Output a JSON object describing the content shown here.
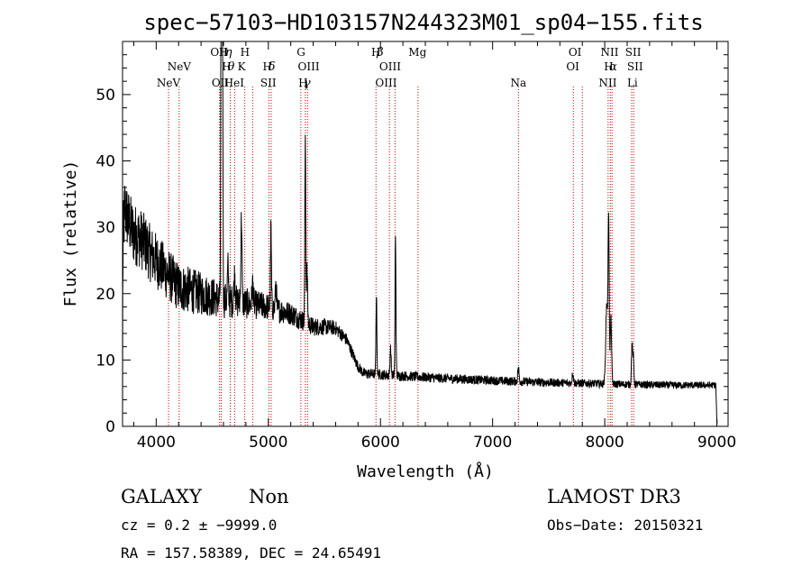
{
  "chart_data": {
    "type": "line",
    "title": "spec−57103−HD103157N244323M01_sp04−155.fits",
    "xlabel": "Wavelength (Å)",
    "ylabel": "Flux (relative)",
    "xlim": [
      3700,
      9100
    ],
    "ylim": [
      0,
      58
    ],
    "x_ticks": [
      {
        "value": 4000,
        "label": "4000"
      },
      {
        "value": 5000,
        "label": "5000"
      },
      {
        "value": 6000,
        "label": "6000"
      },
      {
        "value": 7000,
        "label": "7000"
      },
      {
        "value": 8000,
        "label": "8000"
      },
      {
        "value": 9000,
        "label": "9000"
      }
    ],
    "y_ticks": [
      {
        "value": 0,
        "label": "0"
      },
      {
        "value": 10,
        "label": "10"
      },
      {
        "value": 20,
        "label": "20"
      },
      {
        "value": 30,
        "label": "30"
      },
      {
        "value": 40,
        "label": "40"
      },
      {
        "value": 50,
        "label": "50"
      }
    ],
    "grid": false,
    "continuum_nodes": [
      [
        3700,
        13
      ],
      [
        3705,
        28
      ],
      [
        3720,
        33
      ],
      [
        3750,
        31
      ],
      [
        3800,
        29
      ],
      [
        3850,
        28.5
      ],
      [
        3900,
        27.5
      ],
      [
        3950,
        26
      ],
      [
        4000,
        25
      ],
      [
        4050,
        24
      ],
      [
        4100,
        23
      ],
      [
        4150,
        22
      ],
      [
        4200,
        21
      ],
      [
        4300,
        20.5
      ],
      [
        4400,
        20
      ],
      [
        4500,
        19.5
      ],
      [
        4600,
        19
      ],
      [
        4700,
        18.8
      ],
      [
        4800,
        18.5
      ],
      [
        4900,
        18.3
      ],
      [
        5000,
        18
      ],
      [
        5100,
        17.5
      ],
      [
        5200,
        17
      ],
      [
        5300,
        16
      ],
      [
        5400,
        15
      ],
      [
        5500,
        15
      ],
      [
        5600,
        14.8
      ],
      [
        5700,
        13
      ],
      [
        5750,
        11
      ],
      [
        5800,
        9
      ],
      [
        5850,
        8
      ],
      [
        6000,
        7.8
      ],
      [
        6200,
        7.6
      ],
      [
        6500,
        7.3
      ],
      [
        7000,
        6.9
      ],
      [
        7500,
        6.6
      ],
      [
        7800,
        6.5
      ],
      [
        8000,
        6.4
      ],
      [
        8300,
        6.3
      ],
      [
        8600,
        6.2
      ],
      [
        8990,
        6.2
      ],
      [
        9000,
        0.5
      ]
    ],
    "emission_features": [
      [
        4580,
        60,
        4.0
      ],
      [
        4590,
        55,
        4.0
      ],
      [
        4640,
        5,
        5.0
      ],
      [
        4700,
        4,
        6.0
      ],
      [
        4760,
        13,
        5.0
      ],
      [
        4860,
        3,
        6.0
      ],
      [
        5023,
        12,
        4.0
      ],
      [
        5068,
        4,
        5.0
      ],
      [
        5330,
        28,
        4.0
      ],
      [
        5345,
        8,
        5.0
      ],
      [
        5964,
        12,
        4.0
      ],
      [
        6090,
        4,
        5.0
      ],
      [
        6134,
        21,
        4.0
      ],
      [
        7230,
        2,
        6.0
      ],
      [
        7715,
        1.5,
        6.0
      ],
      [
        8018,
        12,
        9.0
      ],
      [
        8035,
        24,
        5.0
      ],
      [
        8055,
        10,
        6.0
      ],
      [
        8243,
        6,
        5.0
      ],
      [
        8255,
        4,
        5.0
      ]
    ],
    "noise_amplitude_bands": [
      [
        3700,
        5.0
      ],
      [
        4300,
        3.5
      ],
      [
        4700,
        2.5
      ],
      [
        5800,
        0.8
      ],
      [
        9000,
        0.5
      ]
    ],
    "line_markers": [
      {
        "wavelength": 4110,
        "label": "NeV",
        "row": 3
      },
      {
        "wavelength": 4205,
        "label": "NeV",
        "row": 2
      },
      {
        "wavelength": 4560,
        "label": "OII",
        "row": 1
      },
      {
        "wavelength": 4572,
        "label": "OII",
        "row": 3
      },
      {
        "wavelength": 4600,
        "label": "H",
        "row": 1
      },
      {
        "wavelength": 4645,
        "label": "η",
        "row": 1,
        "greek": true
      },
      {
        "wavelength": 4628,
        "label": "H",
        "row": 2
      },
      {
        "wavelength": 4668,
        "label": "θ",
        "row": 2,
        "greek": true
      },
      {
        "wavelength": 4695,
        "label": "HeI",
        "row": 3
      },
      {
        "wavelength": 4762,
        "label": "K",
        "row": 2
      },
      {
        "wavelength": 4792,
        "label": "H",
        "row": 1
      },
      {
        "wavelength": 4992,
        "label": "H",
        "row": 2
      },
      {
        "wavelength": 5030,
        "label": "δ",
        "row": 2,
        "greek": true
      },
      {
        "wavelength": 5000,
        "label": "SII",
        "row": 3
      },
      {
        "wavelength": 5291,
        "label": "G",
        "row": 1
      },
      {
        "wavelength": 5310,
        "label": "H",
        "row": 3
      },
      {
        "wavelength": 5345,
        "label": "γ",
        "row": 3,
        "greek": true
      },
      {
        "wavelength": 5360,
        "label": "OIII",
        "row": 2
      },
      {
        "wavelength": 5960,
        "label": "H",
        "row": 1
      },
      {
        "wavelength": 5996,
        "label": "β",
        "row": 1,
        "greek": true
      },
      {
        "wavelength": 6086,
        "label": "OIII",
        "row": 2
      },
      {
        "wavelength": 6050,
        "label": "OIII",
        "row": 3
      },
      {
        "wavelength": 6330,
        "label": "Mg",
        "row": 1
      },
      {
        "wavelength": 7230,
        "label": "Na",
        "row": 3
      },
      {
        "wavelength": 7735,
        "label": "OI",
        "row": 1
      },
      {
        "wavelength": 7715,
        "label": "OI",
        "row": 2
      },
      {
        "wavelength": 8043,
        "label": "NII",
        "row": 1
      },
      {
        "wavelength": 8035,
        "label": "H",
        "row": 2
      },
      {
        "wavelength": 8075,
        "label": "α",
        "row": 2,
        "greek": true
      },
      {
        "wavelength": 8027,
        "label": "NII",
        "row": 3
      },
      {
        "wavelength": 8253,
        "label": "SII",
        "row": 1
      },
      {
        "wavelength": 8270,
        "label": "SII",
        "row": 2
      },
      {
        "wavelength": 8247,
        "label": "Li",
        "row": 3
      }
    ],
    "marker_lines": [
      4110,
      4205,
      4565,
      4580,
      4660,
      4700,
      4790,
      4860,
      5005,
      5025,
      5290,
      5330,
      5350,
      5960,
      6080,
      6130,
      6335,
      7230,
      7720,
      7800,
      8030,
      8050,
      8065,
      8240,
      8258
    ],
    "marker_color": "#cc0000",
    "line_color": "#000000"
  },
  "footer": {
    "object_class": "GALAXY",
    "subclass": "Non",
    "survey": "LAMOST DR3",
    "cz": "cz = 0.2 ± −9999.0",
    "obs_date": "Obs−Date: 20150321",
    "coords": "RA = 157.58389, DEC =  24.65491"
  }
}
